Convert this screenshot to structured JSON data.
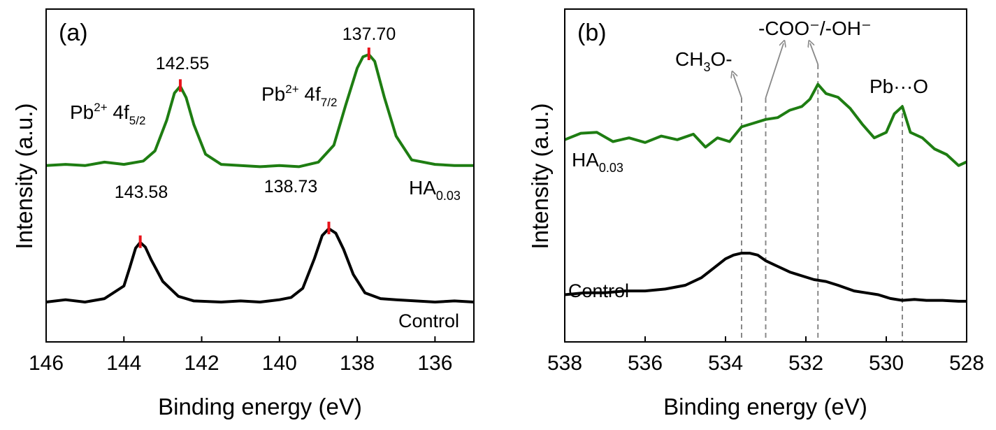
{
  "chart_data": [
    {
      "type": "line",
      "panel_label": "(a)",
      "xlabel": "Binding energy (eV)",
      "ylabel": "Intensity (a.u.)",
      "xlim": [
        146,
        135
      ],
      "x_ticks": [
        146,
        144,
        142,
        140,
        138,
        136
      ],
      "y_ticks_shown": false,
      "series": [
        {
          "name": "HA",
          "name_sub": "0.03",
          "color": "#1e7d12",
          "x": [
            146.0,
            145.5,
            145.0,
            144.5,
            144.0,
            143.5,
            143.2,
            142.9,
            142.7,
            142.55,
            142.4,
            142.2,
            141.9,
            141.5,
            141.0,
            140.5,
            140.0,
            139.5,
            139.0,
            138.6,
            138.3,
            138.0,
            137.85,
            137.7,
            137.55,
            137.3,
            137.0,
            136.6,
            136.0,
            135.5,
            135.0
          ],
          "y": [
            0.02,
            0.03,
            0.02,
            0.05,
            0.03,
            0.06,
            0.15,
            0.42,
            0.66,
            0.72,
            0.62,
            0.38,
            0.12,
            0.03,
            0.02,
            0.01,
            0.02,
            0.01,
            0.05,
            0.2,
            0.55,
            0.88,
            0.98,
            1.0,
            0.94,
            0.62,
            0.28,
            0.07,
            0.03,
            0.02,
            0.02
          ]
        },
        {
          "name": "Control",
          "color": "#000000",
          "x": [
            146.0,
            145.5,
            145.0,
            144.5,
            144.0,
            143.85,
            143.7,
            143.58,
            143.45,
            143.3,
            143.0,
            142.6,
            142.2,
            141.5,
            141.0,
            140.5,
            140.0,
            139.7,
            139.4,
            139.1,
            138.9,
            138.73,
            138.55,
            138.35,
            138.1,
            137.8,
            137.4,
            137.0,
            136.5,
            136.0,
            135.5,
            135.0
          ],
          "y": [
            0.0,
            0.02,
            0.0,
            0.03,
            0.14,
            0.3,
            0.47,
            0.52,
            0.48,
            0.37,
            0.18,
            0.05,
            0.01,
            0.0,
            0.01,
            0.0,
            0.02,
            0.04,
            0.12,
            0.38,
            0.58,
            0.64,
            0.6,
            0.46,
            0.24,
            0.08,
            0.03,
            0.02,
            0.01,
            0.0,
            0.01,
            0.0
          ]
        }
      ],
      "annotations": [
        {
          "text": "142.55",
          "x": 142.55,
          "series": 0
        },
        {
          "text": "137.70",
          "x": 137.7,
          "series": 0
        },
        {
          "text": "143.58",
          "x": 143.58,
          "series": 1
        },
        {
          "text": "138.73",
          "x": 138.73,
          "series": 1
        }
      ],
      "marker_color": "#e8141b",
      "peak_labels": [
        {
          "main": "Pb",
          "sup": "2+",
          "mid": " 4f",
          "sub": "5/2"
        },
        {
          "main": "Pb",
          "sup": "2+",
          "mid": " 4f",
          "sub": "7/2"
        }
      ],
      "series_labels": [
        "HA",
        "0.03",
        "Control"
      ]
    },
    {
      "type": "line",
      "panel_label": "(b)",
      "xlabel": "Binding energy (eV)",
      "ylabel": "Intensity (a.u.)",
      "xlim": [
        538,
        528
      ],
      "x_ticks": [
        538,
        536,
        534,
        532,
        530,
        528
      ],
      "y_ticks_shown": false,
      "series": [
        {
          "name": "HA",
          "name_sub": "0.03",
          "color": "#1e7d12",
          "x": [
            538.0,
            537.6,
            537.2,
            536.8,
            536.4,
            536.0,
            535.6,
            535.2,
            534.8,
            534.5,
            534.2,
            533.9,
            533.6,
            533.3,
            533.0,
            532.7,
            532.4,
            532.1,
            531.9,
            531.7,
            531.5,
            531.2,
            530.9,
            530.6,
            530.3,
            530.0,
            529.8,
            529.6,
            529.4,
            529.1,
            528.8,
            528.5,
            528.2,
            528.0
          ],
          "y": [
            0.38,
            0.45,
            0.46,
            0.36,
            0.4,
            0.35,
            0.42,
            0.38,
            0.44,
            0.3,
            0.4,
            0.36,
            0.52,
            0.56,
            0.6,
            0.62,
            0.7,
            0.74,
            0.82,
            0.98,
            0.88,
            0.84,
            0.72,
            0.55,
            0.4,
            0.46,
            0.66,
            0.74,
            0.46,
            0.4,
            0.28,
            0.22,
            0.1,
            0.14
          ]
        },
        {
          "name": "Control",
          "color": "#000000",
          "x": [
            538.0,
            537.5,
            537.0,
            536.5,
            536.0,
            535.5,
            535.0,
            534.6,
            534.3,
            534.0,
            533.8,
            533.6,
            533.4,
            533.2,
            533.0,
            532.7,
            532.4,
            532.1,
            531.8,
            531.5,
            531.2,
            530.8,
            530.5,
            530.2,
            529.9,
            529.6,
            529.3,
            529.0,
            528.6,
            528.2,
            528.0
          ],
          "y": [
            0.1,
            0.12,
            0.12,
            0.14,
            0.14,
            0.16,
            0.2,
            0.28,
            0.38,
            0.48,
            0.52,
            0.54,
            0.54,
            0.52,
            0.46,
            0.4,
            0.34,
            0.3,
            0.26,
            0.24,
            0.2,
            0.14,
            0.12,
            0.1,
            0.06,
            0.04,
            0.05,
            0.04,
            0.04,
            0.03,
            0.03
          ]
        }
      ],
      "reference_lines": [
        533.6,
        533.0,
        531.7,
        529.6
      ],
      "annotations": [
        {
          "text_parts": [
            "CH",
            "3",
            "O-"
          ],
          "x": 533.6
        },
        {
          "text": "-COO⁻/-OH⁻",
          "x": [
            533.0,
            531.7
          ]
        },
        {
          "text": "Pb···O",
          "x": 529.6
        }
      ],
      "series_labels": [
        "HA",
        "0.03",
        "Control"
      ]
    }
  ]
}
